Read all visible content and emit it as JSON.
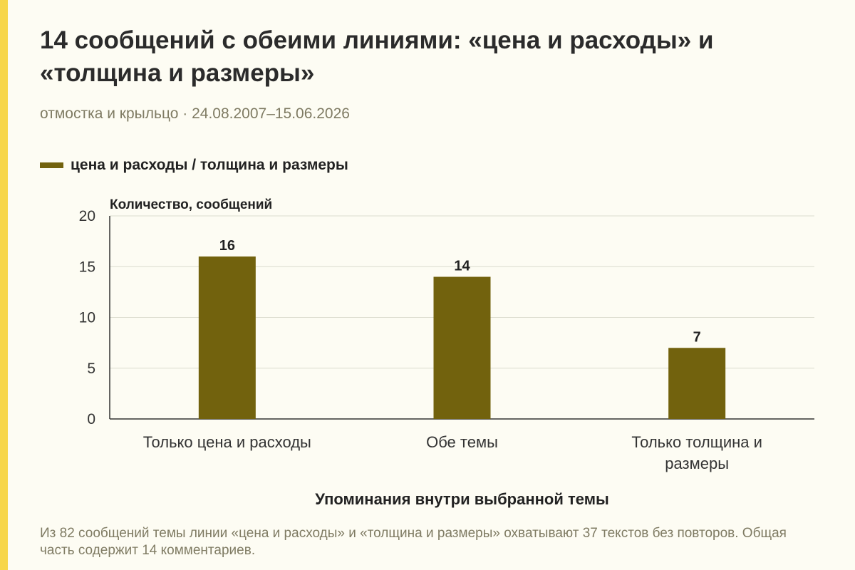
{
  "title": "14 сообщений с обеими линиями: «цена и расходы» и «толщина и размеры»",
  "subtitle": "отмостка и крыльцо · 24.08.2007–15.06.2026",
  "footnote": "Из 82 сообщений темы линии «цена и расходы» и «толщина и размеры» охватывают 37 текстов без повторов. Общая часть содержит 14 комментариев.",
  "colors": {
    "bar": "#72620d",
    "accent": "#f7d64a",
    "grid": "#dcdccf",
    "axis": "#333333",
    "muted_text": "#7f7b63"
  },
  "chart_data": {
    "type": "bar",
    "categories": [
      "Только цена и расходы",
      "Обе темы",
      "Только толщина и размеры"
    ],
    "series": [
      {
        "name": "цена и расходы / толщина и размеры",
        "values": [
          16,
          14,
          7
        ]
      }
    ],
    "xlabel": "Упоминания внутри выбранной темы",
    "ylabel": "Количество, сообщений",
    "ylim": [
      0,
      20
    ],
    "yticks": [
      0,
      5,
      10,
      15,
      20
    ],
    "grid": true,
    "legend": "top-left",
    "data_labels": true
  }
}
